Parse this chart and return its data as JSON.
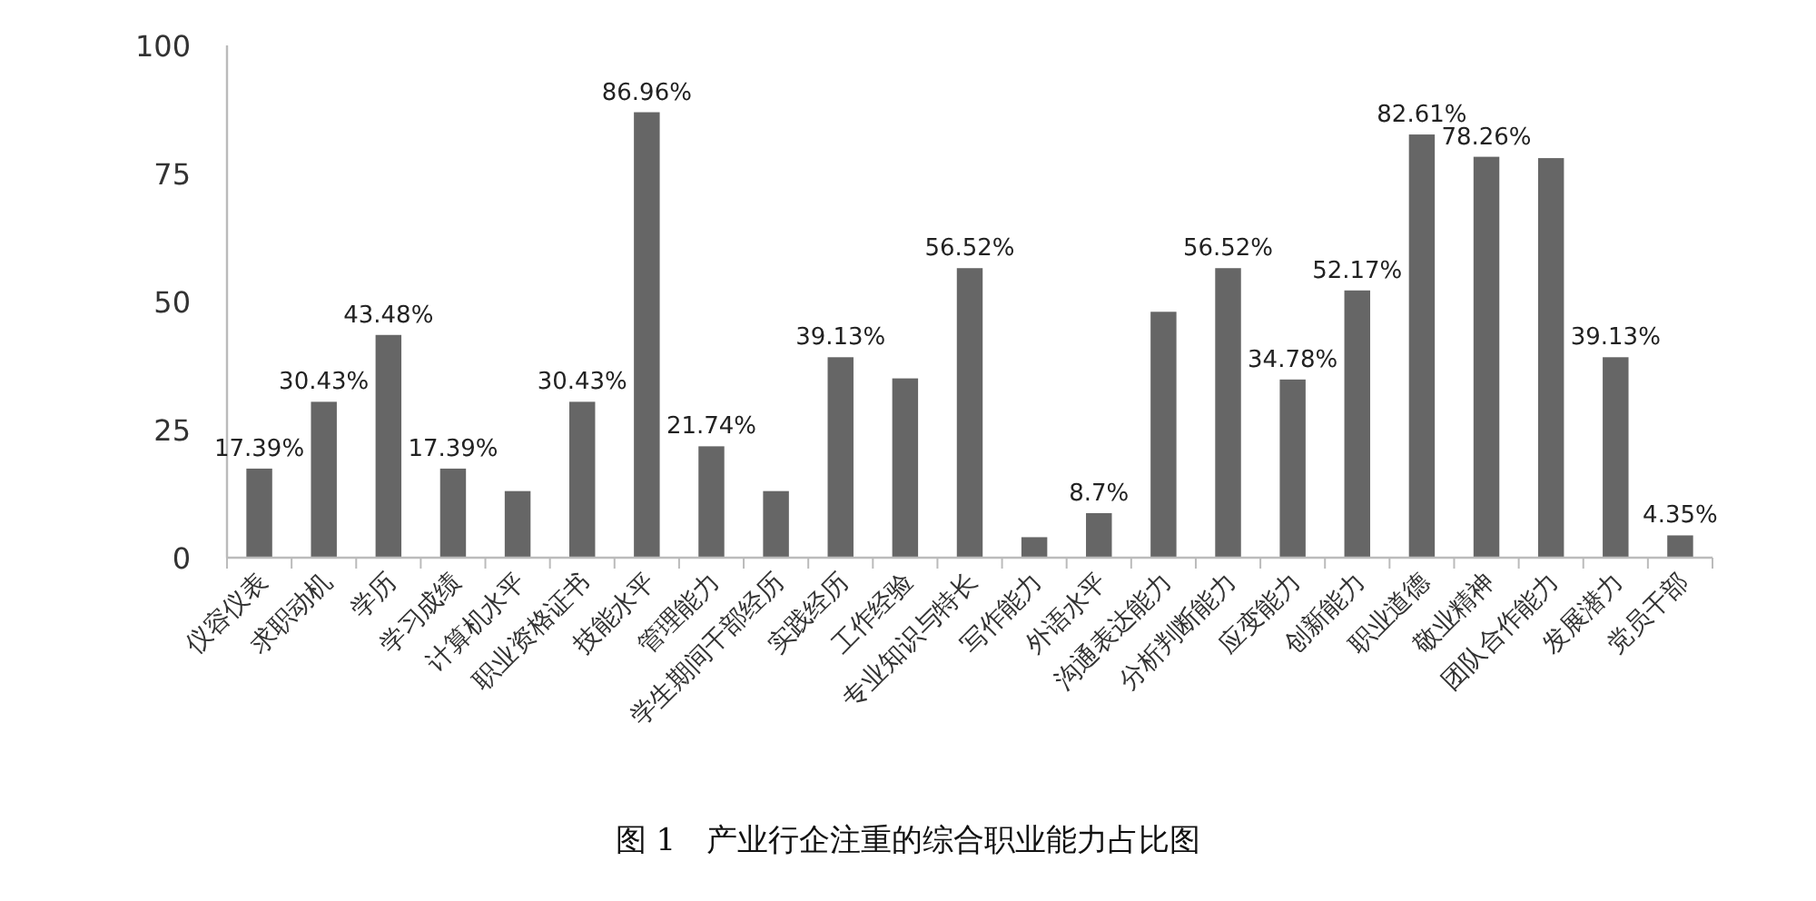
{
  "chart_data": {
    "type": "bar",
    "title": "图 1　产业行企注重的综合职业能力占比图",
    "categories": [
      "仪容仪表",
      "求职动机",
      "学历",
      "学习成绩",
      "计算机水平",
      "职业资格证书",
      "技能水平",
      "管理能力",
      "学生期间干部经历",
      "实践经历",
      "工作经验",
      "专业知识与特长",
      "写作能力",
      "外语水平",
      "沟通表达能力",
      "分析判断能力",
      "应变能力",
      "创新能力",
      "职业道德",
      "敬业精神",
      "团队合作能力",
      "发展潜力",
      "党员干部"
    ],
    "values": [
      17.39,
      30.43,
      43.48,
      17.39,
      13,
      30.43,
      86.96,
      21.74,
      13,
      39.13,
      35,
      56.52,
      4,
      8.7,
      48,
      56.52,
      34.78,
      52.17,
      82.61,
      78.26,
      78,
      39.13,
      4.35
    ],
    "value_labels": [
      "17.39%",
      "30.43%",
      "43.48%",
      "17.39%",
      null,
      "30.43%",
      "86.96%",
      "21.74%",
      null,
      "39.13%",
      null,
      "56.52%",
      null,
      "8.7%",
      null,
      "56.52%",
      "34.78%",
      "52.17%",
      "82.61%",
      "78.26%",
      null,
      "39.13%",
      "4.35%"
    ],
    "color": "#666666",
    "ylim": [
      0,
      100
    ],
    "yticks": [
      0,
      25,
      50,
      75,
      100
    ]
  }
}
